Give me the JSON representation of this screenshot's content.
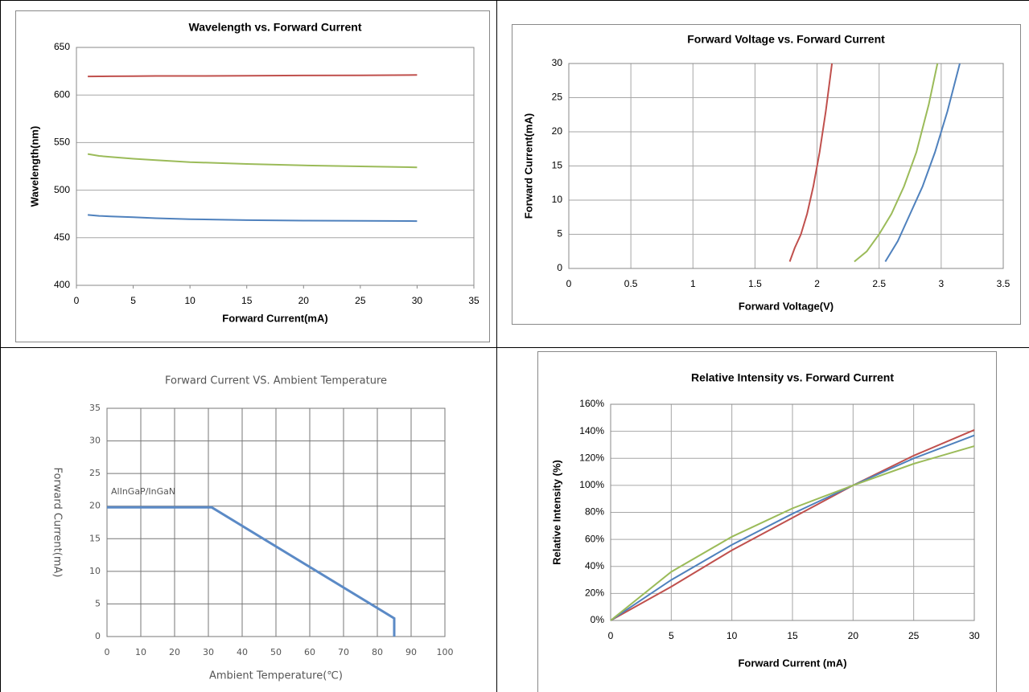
{
  "chart_data": [
    {
      "type": "line",
      "title": "Wavelength vs. Forward Current",
      "x_label": "Forward Current(mA)",
      "y_label": "Wavelength(nm)",
      "x": [
        1,
        2,
        3,
        5,
        7,
        10,
        15,
        20,
        25,
        30
      ],
      "series": [
        {
          "color": "#c0504d",
          "values": [
            619.5,
            619.6,
            619.7,
            619.8,
            620,
            620,
            620.2,
            620.5,
            620.7,
            621
          ]
        },
        {
          "color": "#9bbb59",
          "values": [
            538,
            536,
            535,
            533,
            531.5,
            529.5,
            527.5,
            526,
            525,
            524
          ]
        },
        {
          "color": "#4f81bd",
          "values": [
            474,
            473,
            472.5,
            471.5,
            470.5,
            469.5,
            468.5,
            468,
            467.8,
            467.5
          ]
        }
      ],
      "xlim": [
        0,
        35
      ],
      "xticks": [
        0,
        5,
        10,
        15,
        20,
        25,
        30,
        35
      ],
      "ylim": [
        400,
        650
      ],
      "yticks": [
        400,
        450,
        500,
        550,
        600,
        650
      ],
      "grid": "y"
    },
    {
      "type": "line",
      "title": "Forward Voltage vs. Forward Current",
      "x_label": "Forward Voltage(V)",
      "y_label": "Forward Current(mA)",
      "series": [
        {
          "color": "#c0504d",
          "x": [
            1.78,
            1.82,
            1.87,
            1.92,
            1.97,
            2.02,
            2.07,
            2.12
          ],
          "values": [
            1,
            3,
            5,
            8,
            12,
            17,
            23,
            30
          ]
        },
        {
          "color": "#9bbb59",
          "x": [
            2.3,
            2.4,
            2.5,
            2.6,
            2.7,
            2.8,
            2.9,
            2.97
          ],
          "values": [
            1,
            2.5,
            5,
            8,
            12,
            17,
            24,
            30
          ]
        },
        {
          "color": "#4f81bd",
          "x": [
            2.55,
            2.65,
            2.75,
            2.85,
            2.95,
            3.05,
            3.15
          ],
          "values": [
            1,
            4,
            8,
            12,
            17,
            23,
            30
          ]
        }
      ],
      "xlim": [
        0,
        3.5
      ],
      "xticks": [
        0,
        0.5,
        1,
        1.5,
        2,
        2.5,
        3,
        3.5
      ],
      "ylim": [
        0,
        30
      ],
      "yticks": [
        0,
        5,
        10,
        15,
        20,
        25,
        30
      ],
      "grid": "both"
    },
    {
      "type": "line",
      "title": "Forward Current VS. Ambient Temperature",
      "x_label": "Ambient Temperature(℃)",
      "y_label": "Forward  Current(mA)",
      "annotation": "AlInGaP/InGaN",
      "x": [
        0,
        31,
        85,
        85
      ],
      "series": [
        {
          "color": "#5b8ac6",
          "values": [
            19.8,
            19.8,
            2.8,
            0
          ]
        }
      ],
      "xlim": [
        0,
        100
      ],
      "xticks": [
        0,
        10,
        20,
        30,
        40,
        50,
        60,
        70,
        80,
        90,
        100
      ],
      "ylim": [
        0,
        35
      ],
      "yticks": [
        0,
        5,
        10,
        15,
        20,
        25,
        30,
        35
      ],
      "grid": "both"
    },
    {
      "type": "line",
      "title": "Relative Intensity vs. Forward Current",
      "x_label": "Forward Current (mA)",
      "y_label": "Relative Intensity (%)",
      "x": [
        0,
        5,
        10,
        15,
        20,
        25,
        30
      ],
      "series": [
        {
          "color": "#c0504d",
          "values": [
            0,
            25,
            52,
            76,
            100,
            122,
            141
          ]
        },
        {
          "color": "#4f81bd",
          "values": [
            0,
            30,
            56,
            79,
            100,
            120,
            137
          ]
        },
        {
          "color": "#9bbb59",
          "values": [
            0,
            36,
            62,
            83,
            100,
            116,
            129
          ]
        }
      ],
      "xlim": [
        0,
        30
      ],
      "xticks": [
        0,
        5,
        10,
        15,
        20,
        25,
        30
      ],
      "ylim": [
        0,
        160
      ],
      "yticks": [
        {
          "value": 0,
          "label": "0%"
        },
        {
          "value": 20,
          "label": "20%"
        },
        {
          "value": 40,
          "label": "40%"
        },
        {
          "value": 60,
          "label": "60%"
        },
        {
          "value": 80,
          "label": "80%"
        },
        {
          "value": 100,
          "label": "100%"
        },
        {
          "value": 120,
          "label": "120%"
        },
        {
          "value": 140,
          "label": "140%"
        },
        {
          "value": 160,
          "label": "160%"
        }
      ],
      "grid": "both"
    }
  ]
}
